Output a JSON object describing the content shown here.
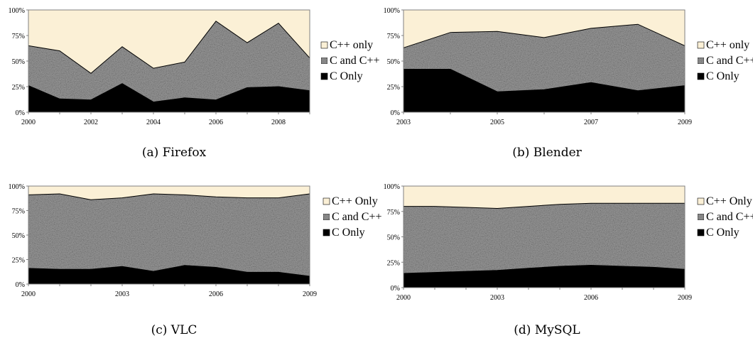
{
  "colors": {
    "cpp_only": "#fbf0d6",
    "c_and_cpp": "#9c9c9c",
    "c_only": "#000000",
    "border": "#808080"
  },
  "chart_data": [
    {
      "type": "area",
      "caption": "(a)  Firefox",
      "x": [
        2000,
        2001,
        2002,
        2003,
        2004,
        2005,
        2006,
        2007,
        2008,
        2009
      ],
      "xticks": [
        "2000",
        "2002",
        "2004",
        "2006",
        "2008"
      ],
      "xtick_values": [
        2000,
        2002,
        2004,
        2006,
        2008
      ],
      "yticks": [
        "0%",
        "25%",
        "50%",
        "75%",
        "100%"
      ],
      "ylim": [
        0,
        100
      ],
      "stacked": true,
      "series": [
        {
          "name": "C Only",
          "values": [
            26,
            13,
            12,
            28,
            10,
            14,
            12,
            24,
            25,
            21
          ]
        },
        {
          "name": "C and C++",
          "values": [
            39,
            47,
            26,
            36,
            33,
            35,
            77,
            44,
            62,
            32
          ]
        },
        {
          "name": "C++ only",
          "values": [
            35,
            40,
            62,
            36,
            57,
            51,
            11,
            32,
            13,
            47
          ]
        }
      ],
      "legend": [
        "C++ only",
        "C and C++",
        "C Only"
      ],
      "legend_position": "right"
    },
    {
      "type": "area",
      "caption": "(b)  Blender",
      "x": [
        2003,
        2004,
        2005,
        2006,
        2007,
        2008,
        2009
      ],
      "xticks": [
        "2003",
        "2005",
        "2007",
        "2009"
      ],
      "xtick_values": [
        2003,
        2005,
        2007,
        2009
      ],
      "yticks": [
        "0%",
        "25%",
        "50%",
        "75%",
        "100%"
      ],
      "ylim": [
        0,
        100
      ],
      "stacked": true,
      "series": [
        {
          "name": "C Only",
          "values": [
            42,
            42,
            20,
            22,
            29,
            21,
            26
          ]
        },
        {
          "name": "C and C++",
          "values": [
            21,
            36,
            59,
            51,
            53,
            65,
            39
          ]
        },
        {
          "name": "C++ only",
          "values": [
            37,
            22,
            21,
            27,
            18,
            14,
            35
          ]
        }
      ],
      "legend": [
        "C++ only",
        "C and C++",
        "C Only"
      ],
      "legend_position": "right"
    },
    {
      "type": "area",
      "caption": "(c)  VLC",
      "x": [
        2000,
        2001,
        2002,
        2003,
        2004,
        2005,
        2006,
        2007,
        2008,
        2009
      ],
      "xticks": [
        "2000",
        "2003",
        "2006",
        "2009"
      ],
      "xtick_values": [
        2000,
        2003,
        2006,
        2009
      ],
      "yticks": [
        "0%",
        "25%",
        "50%",
        "75%",
        "100%"
      ],
      "ylim": [
        0,
        100
      ],
      "stacked": true,
      "series": [
        {
          "name": "C Only",
          "values": [
            16,
            15,
            15,
            18,
            13,
            19,
            17,
            12,
            12,
            8
          ]
        },
        {
          "name": "C and C++",
          "values": [
            75,
            77,
            71,
            70,
            79,
            72,
            72,
            76,
            76,
            84
          ]
        },
        {
          "name": "C++ Only",
          "values": [
            9,
            8,
            14,
            12,
            8,
            9,
            11,
            12,
            12,
            8
          ]
        }
      ],
      "legend": [
        "C++ Only",
        "C and C++",
        "C Only"
      ],
      "legend_position": "right"
    },
    {
      "type": "area",
      "caption": "(d)  MySQL",
      "x": [
        2000,
        2001,
        2002,
        2003,
        2004,
        2005,
        2006,
        2007,
        2008,
        2009
      ],
      "xticks": [
        "2000",
        "2003",
        "2006",
        "2009"
      ],
      "xtick_values": [
        2000,
        2003,
        2006,
        2009
      ],
      "yticks": [
        "0%",
        "25%",
        "50%",
        "75%",
        "100%"
      ],
      "ylim": [
        0,
        100
      ],
      "stacked": true,
      "series": [
        {
          "name": "C Only",
          "values": [
            14,
            15,
            16,
            17,
            19,
            21,
            22,
            21,
            20,
            18
          ]
        },
        {
          "name": "C and C++",
          "values": [
            66,
            65,
            63,
            61,
            61,
            61,
            61,
            62,
            63,
            65
          ]
        },
        {
          "name": "C++ Only",
          "values": [
            20,
            20,
            21,
            22,
            20,
            18,
            17,
            17,
            17,
            17
          ]
        }
      ],
      "legend": [
        "C++ Only",
        "C and C++",
        "C Only"
      ],
      "legend_position": "right"
    }
  ]
}
